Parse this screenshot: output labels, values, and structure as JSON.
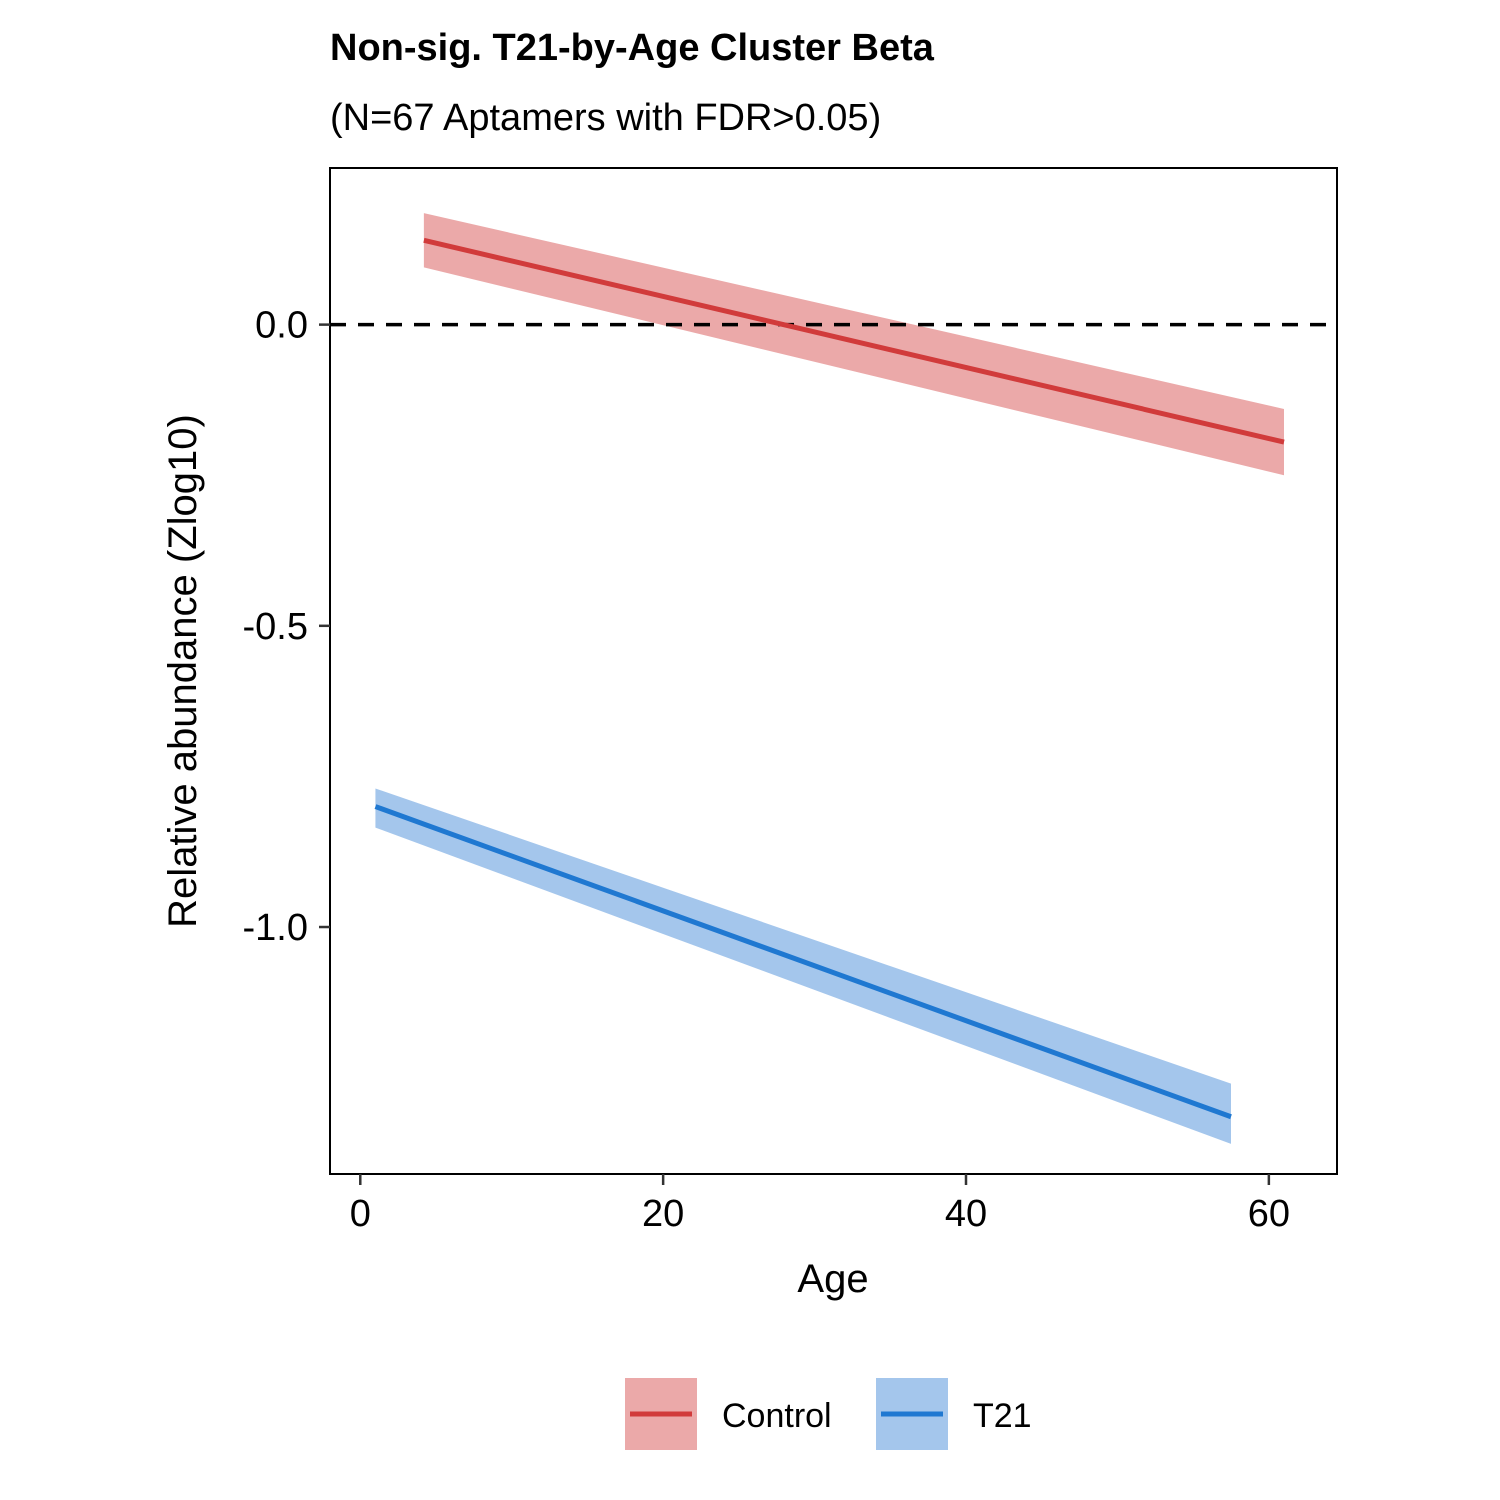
{
  "chart_data": {
    "type": "line",
    "title": "Non-sig. T21-by-Age Cluster Beta",
    "subtitle": "(N=67 Aptamers with FDR>0.05)",
    "xlabel": "Age",
    "ylabel": "Relative abundance (Zlog10)",
    "xlim": [
      -2,
      64.5
    ],
    "ylim": [
      -1.41,
      0.26
    ],
    "x_ticks": [
      0,
      20,
      40,
      60
    ],
    "x_tick_labels": [
      "0",
      "20",
      "40",
      "60"
    ],
    "y_ticks": [
      0.0,
      -0.5,
      -1.0
    ],
    "y_tick_labels": [
      "0.0",
      "-0.5",
      "-1.0"
    ],
    "reference_line": {
      "y": 0.0,
      "style": "dashed",
      "color": "#000000"
    },
    "grid": false,
    "legend": {
      "position": "bottom",
      "entries": [
        "Control",
        "T21"
      ]
    },
    "series": [
      {
        "name": "Control",
        "color": "#d13b3b",
        "band_color": "#eba9a9",
        "x": [
          4.2,
          61.0
        ],
        "y": [
          0.14,
          -0.195
        ],
        "lower": [
          0.095,
          -0.25
        ],
        "upper": [
          0.185,
          -0.14
        ]
      },
      {
        "name": "T21",
        "color": "#1f78d1",
        "band_color": "#a4c6ec",
        "x": [
          1.0,
          57.5
        ],
        "y": [
          -0.8,
          -1.315
        ],
        "lower": [
          -0.835,
          -1.36
        ],
        "upper": [
          -0.77,
          -1.26
        ]
      }
    ]
  }
}
